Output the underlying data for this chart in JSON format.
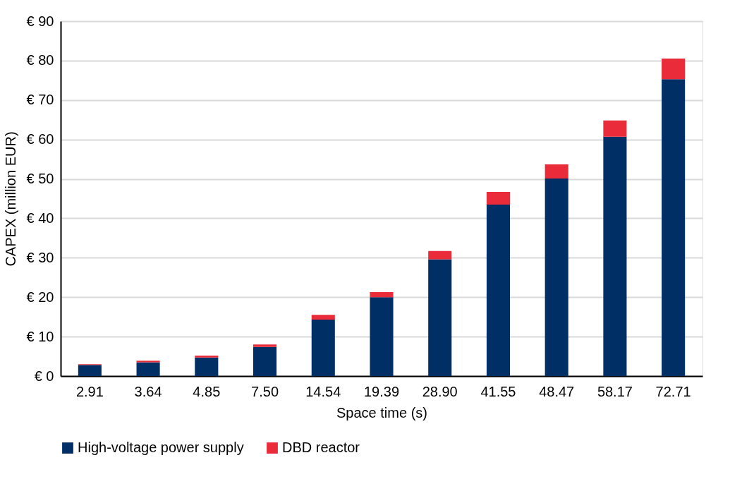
{
  "chart_data": {
    "type": "bar",
    "stacked": true,
    "xlabel": "Space time (s)",
    "ylabel": "CAPEX (million EUR)",
    "categories": [
      "2.91",
      "3.64",
      "4.85",
      "7.50",
      "14.54",
      "19.39",
      "28.90",
      "41.55",
      "48.47",
      "58.17",
      "72.71"
    ],
    "series": [
      {
        "name": "High-voltage power supply",
        "color": "#002f66",
        "values": [
          2.8,
          3.5,
          4.7,
          7.4,
          14.3,
          20.0,
          29.6,
          43.5,
          50.1,
          60.7,
          75.3
        ]
      },
      {
        "name": "DBD reactor",
        "color": "#e92b3a",
        "values": [
          0.2,
          0.4,
          0.5,
          0.6,
          1.2,
          1.3,
          2.1,
          3.2,
          3.6,
          4.1,
          5.2
        ]
      }
    ],
    "ylim": [
      0,
      90
    ],
    "yticks": [
      {
        "value": 0,
        "label": "€ 0"
      },
      {
        "value": 10,
        "label": "€ 10"
      },
      {
        "value": 20,
        "label": "€ 20"
      },
      {
        "value": 30,
        "label": "€ 30"
      },
      {
        "value": 40,
        "label": "€ 40"
      },
      {
        "value": 50,
        "label": "€ 50"
      },
      {
        "value": 60,
        "label": "€ 60"
      },
      {
        "value": 70,
        "label": "€ 70"
      },
      {
        "value": 80,
        "label": "€ 80"
      },
      {
        "value": 90,
        "label": "€ 90"
      }
    ],
    "grid": "y",
    "legend": "bottom"
  }
}
